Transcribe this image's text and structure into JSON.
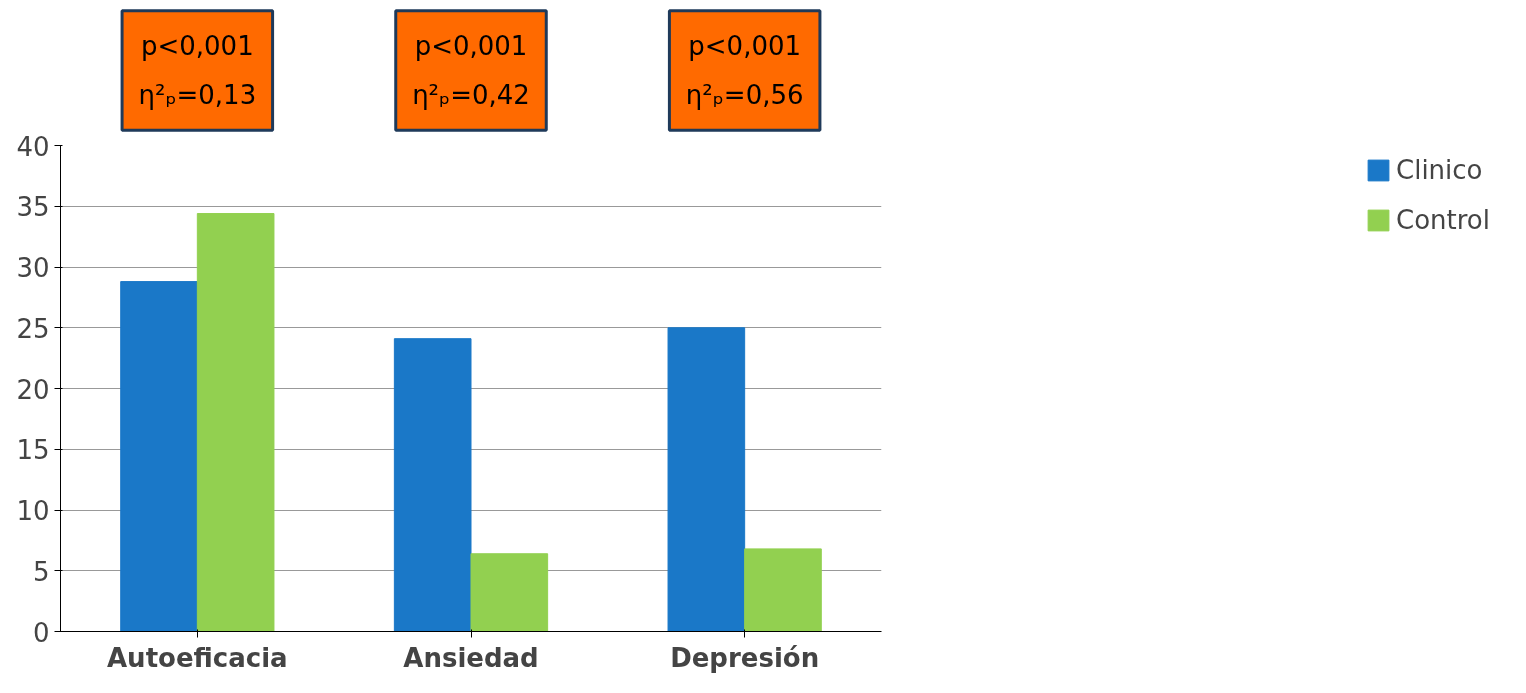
{
  "chart_data": {
    "type": "bar",
    "categories": [
      "Autoeficacia",
      "Ansiedad",
      "Depresión"
    ],
    "series": [
      {
        "name": "Clinico",
        "color": "#1a78c8",
        "values": [
          28.8,
          24.1,
          25.0
        ]
      },
      {
        "name": "Control",
        "color": "#92d050",
        "values": [
          34.4,
          6.4,
          6.8
        ]
      }
    ],
    "ylim": [
      0,
      40
    ],
    "yticks": [
      0,
      5,
      10,
      15,
      20,
      25,
      30,
      35,
      40
    ],
    "grid": "y",
    "legend": "right",
    "annotations": [
      "p<0,001\nη²ₚ=0,13",
      "p<0,001\nη²ₚ=0,42",
      "p<0,001\nη²ₚ=0,56"
    ]
  }
}
